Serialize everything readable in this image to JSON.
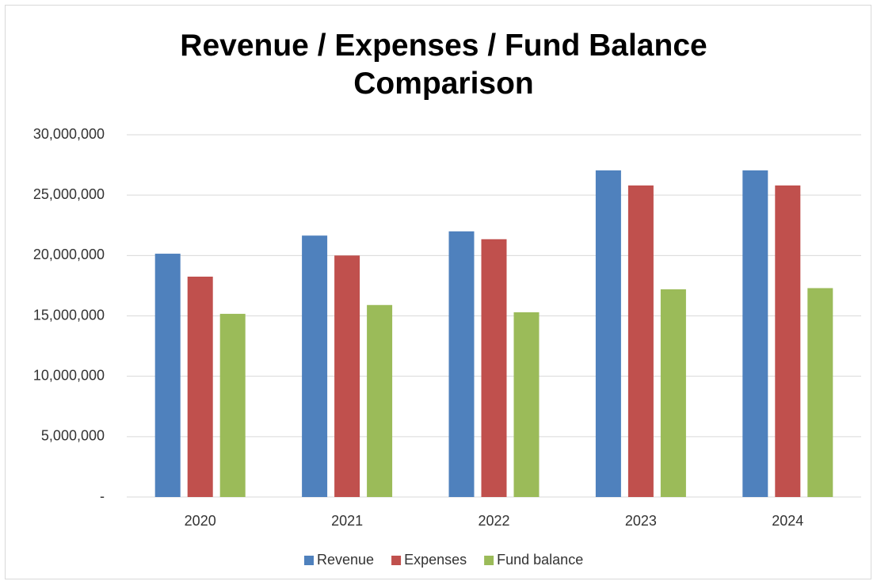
{
  "chart_data": {
    "type": "bar",
    "title": "Revenue / Expenses / Fund Balance Comparison",
    "categories": [
      "2020",
      "2021",
      "2022",
      "2023",
      "2024"
    ],
    "series": [
      {
        "name": "Revenue",
        "color": "#4f81bd",
        "values": [
          20150000,
          21650000,
          22000000,
          27050000,
          27050000
        ]
      },
      {
        "name": "Expenses",
        "color": "#c0504d",
        "values": [
          18250000,
          20000000,
          21350000,
          25800000,
          25800000
        ]
      },
      {
        "name": "Fund balance",
        "color": "#9bbb59",
        "values": [
          15170000,
          15900000,
          15300000,
          17200000,
          17300000
        ]
      }
    ],
    "ylim": [
      0,
      30000000
    ],
    "yticks": [
      {
        "value": 0,
        "label": "-"
      },
      {
        "value": 5000000,
        "label": "5,000,000"
      },
      {
        "value": 10000000,
        "label": "10,000,000"
      },
      {
        "value": 15000000,
        "label": "15,000,000"
      },
      {
        "value": 20000000,
        "label": "20,000,000"
      },
      {
        "value": 25000000,
        "label": "25,000,000"
      },
      {
        "value": 30000000,
        "label": "30,000,000"
      }
    ],
    "grid": true,
    "legend": "bottom"
  }
}
